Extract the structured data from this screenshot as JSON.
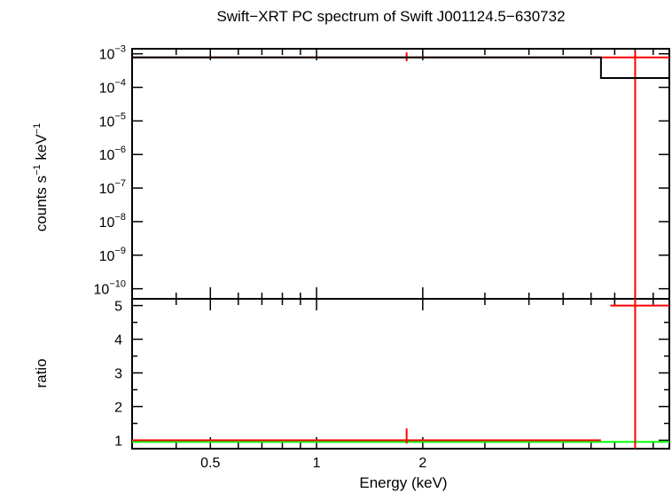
{
  "chart_data": {
    "type": "line",
    "title": "Swift−XRT PC spectrum of Swift J001124.5−630732",
    "xlabel": "Energy (keV)",
    "xscale": "log",
    "xlim": [
      0.3,
      10
    ],
    "xticks": [
      {
        "value": 0.5,
        "label": "0.5"
      },
      {
        "value": 1,
        "label": "1"
      },
      {
        "value": 2,
        "label": "2"
      }
    ],
    "xminor": [
      0.3,
      0.4,
      0.6,
      0.7,
      0.8,
      0.9,
      3,
      4,
      5,
      6,
      7,
      8,
      9
    ],
    "panels": {
      "spectrum": {
        "ylabel_main": "counts s",
        "ylabel_sup1": "−1",
        "ylabel_mid": " keV",
        "ylabel_sup2": "−1",
        "yscale": "log",
        "ylim_exp": [
          -10.3,
          -2.85
        ],
        "yticks": [
          {
            "exp": -3,
            "base": "10",
            "sup": "−3"
          },
          {
            "exp": -4,
            "base": "10",
            "sup": "−4"
          },
          {
            "exp": -5,
            "base": "10",
            "sup": "−5"
          },
          {
            "exp": -6,
            "base": "10",
            "sup": "−6"
          },
          {
            "exp": -7,
            "base": "10",
            "sup": "−7"
          },
          {
            "exp": -8,
            "base": "10",
            "sup": "−8"
          },
          {
            "exp": -9,
            "base": "10",
            "sup": "−9"
          },
          {
            "exp": -10,
            "base": "10",
            "sup": "−10"
          }
        ],
        "series": [
          {
            "color": "#ff0000",
            "kind": "data",
            "points": [
              {
                "x": 1.8,
                "xlo": 0.3,
                "xhi": 6.4,
                "y": 0.00078,
                "yerr_lo": 0.0006,
                "yerr_hi": 0.0011
              },
              {
                "x": 8.0,
                "xlo": 6.4,
                "xhi": 10.0,
                "y": 0.00078,
                "ylo_off": true,
                "yhi": 0.0012
              }
            ]
          },
          {
            "color": "#000000",
            "kind": "model",
            "steps": [
              {
                "xlo": 0.3,
                "xhi": 6.4,
                "y": 0.00078
              },
              {
                "xlo": 6.4,
                "xhi": 10.0,
                "y": 0.00019
              }
            ]
          }
        ]
      },
      "ratio": {
        "ylabel": "ratio",
        "yscale": "linear",
        "ylim": [
          0.75,
          5.2
        ],
        "yticks": [
          1,
          2,
          3,
          4,
          5
        ],
        "reference_line": {
          "y": 0.95,
          "color": "#00ff00"
        },
        "series": [
          {
            "color": "#ff0000",
            "points": [
              {
                "x": 1.8,
                "xlo": 0.3,
                "xhi": 6.4,
                "y": 1.0,
                "yerr_lo": 0.9,
                "yerr_hi": 1.35
              },
              {
                "x": 8.0,
                "xlo": 6.8,
                "xhi": 10.0,
                "y": 5.0,
                "ylo_off": true,
                "yhi_off": true
              }
            ]
          }
        ]
      }
    }
  }
}
